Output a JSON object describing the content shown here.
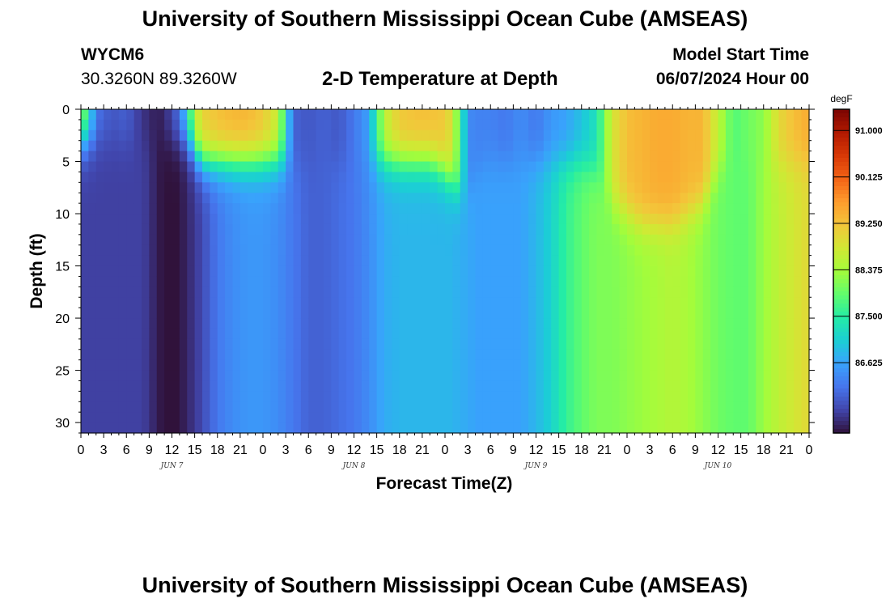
{
  "header": {
    "title": "University of Southern Mississippi Ocean Cube (AMSEAS)",
    "station_id": "WYCM6",
    "station_coords": "30.3260N  89.3260W",
    "plot_title": "2-D Temperature at Depth",
    "model_label": "Model Start Time",
    "model_time": "06/07/2024 Hour 00"
  },
  "footer": {
    "title": "University of Southern Mississippi Ocean Cube (AMSEAS)"
  },
  "chart_data": {
    "type": "heatmap",
    "title": "2-D Temperature at Depth",
    "xlabel": "Forecast Time(Z)",
    "ylabel": "Depth (ft)",
    "x_range_hours": [
      0,
      96
    ],
    "y_range_ft": [
      0,
      31
    ],
    "x_ticks": [
      "0",
      "3",
      "6",
      "9",
      "12",
      "15",
      "18",
      "21",
      "0",
      "3",
      "6",
      "9",
      "12",
      "15",
      "18",
      "21",
      "0",
      "3",
      "6",
      "9",
      "12",
      "15",
      "18",
      "21",
      "0",
      "3",
      "6",
      "9",
      "12",
      "15",
      "18",
      "21",
      "0"
    ],
    "day_labels": [
      {
        "label": "JUN 7",
        "hour": 12
      },
      {
        "label": "JUN 8",
        "hour": 36
      },
      {
        "label": "JUN 9",
        "hour": 60
      },
      {
        "label": "JUN 10",
        "hour": 84
      }
    ],
    "y_ticks": [
      0,
      5,
      10,
      15,
      20,
      25,
      30
    ],
    "colorbar": {
      "unit": "degF",
      "min": 85.3,
      "max": 91.4,
      "ticks": [
        "91.000",
        "90.125",
        "89.250",
        "88.375",
        "87.500",
        "86.625"
      ],
      "tick_values": [
        91.0,
        90.125,
        89.25,
        88.375,
        87.5,
        86.625
      ]
    },
    "grid_hours": [
      0,
      1,
      2,
      4,
      6,
      8,
      9,
      10,
      11,
      12,
      13,
      14,
      15,
      16,
      18,
      20,
      22,
      24,
      26,
      28,
      30,
      32,
      34,
      36,
      38,
      40,
      42,
      44,
      46,
      48,
      49,
      50,
      51,
      52,
      54,
      56,
      58,
      60,
      62,
      64,
      66,
      68,
      70,
      72,
      74,
      76,
      78,
      80,
      82,
      84,
      86,
      88,
      90,
      92,
      94,
      96
    ],
    "surface_temps_degF": [
      88.5,
      87.5,
      86.2,
      85.9,
      86.0,
      85.6,
      85.5,
      85.4,
      85.5,
      85.8,
      86.2,
      87.2,
      88.6,
      89.1,
      89.3,
      89.4,
      89.4,
      89.2,
      88.7,
      86.0,
      85.9,
      86.0,
      85.9,
      86.2,
      86.6,
      88.6,
      89.2,
      89.3,
      89.3,
      89.2,
      88.8,
      87.7,
      86.4,
      86.3,
      86.3,
      86.2,
      86.4,
      86.2,
      86.5,
      86.6,
      86.9,
      87.3,
      88.8,
      89.3,
      89.4,
      89.5,
      89.5,
      89.4,
      89.4,
      88.6,
      87.8,
      88.0,
      88.2,
      89.0,
      89.3,
      89.5
    ],
    "deep_temps_degF": [
      85.7,
      85.7,
      85.7,
      85.7,
      85.7,
      85.7,
      85.6,
      85.4,
      85.3,
      85.3,
      85.3,
      85.5,
      85.6,
      85.8,
      86.2,
      86.4,
      86.5,
      86.5,
      86.4,
      86.2,
      86.0,
      86.0,
      86.1,
      86.2,
      86.4,
      86.7,
      86.8,
      86.8,
      86.8,
      86.8,
      86.8,
      86.7,
      86.7,
      86.6,
      86.6,
      86.6,
      86.6,
      86.8,
      87.1,
      87.6,
      87.9,
      88.1,
      88.1,
      88.2,
      88.3,
      88.4,
      88.5,
      88.4,
      88.2,
      88.0,
      87.9,
      87.9,
      88.3,
      88.6,
      88.8,
      89.0
    ],
    "mixed_layer_depth_ft": [
      3,
      3,
      3,
      3,
      3,
      3,
      3,
      3,
      3,
      3,
      3,
      3,
      4,
      5,
      5,
      5,
      5,
      5,
      5,
      5,
      5,
      5,
      5,
      5,
      5,
      5,
      5,
      5,
      5,
      6,
      7,
      8,
      8,
      6,
      5,
      5,
      5,
      5,
      5,
      5,
      5,
      6,
      9,
      10,
      11,
      11,
      11,
      10,
      9,
      6,
      5,
      5,
      5,
      5,
      5,
      5
    ]
  },
  "colors": {
    "colormap": [
      "#30123b",
      "#4145ab",
      "#4675ed",
      "#39a2fc",
      "#1bcfd4",
      "#24eca6",
      "#61fc6c",
      "#a4fc3b",
      "#d1e834",
      "#f3c63a",
      "#fe9b2d",
      "#f36315",
      "#d93806",
      "#b11901",
      "#7a0402"
    ]
  }
}
